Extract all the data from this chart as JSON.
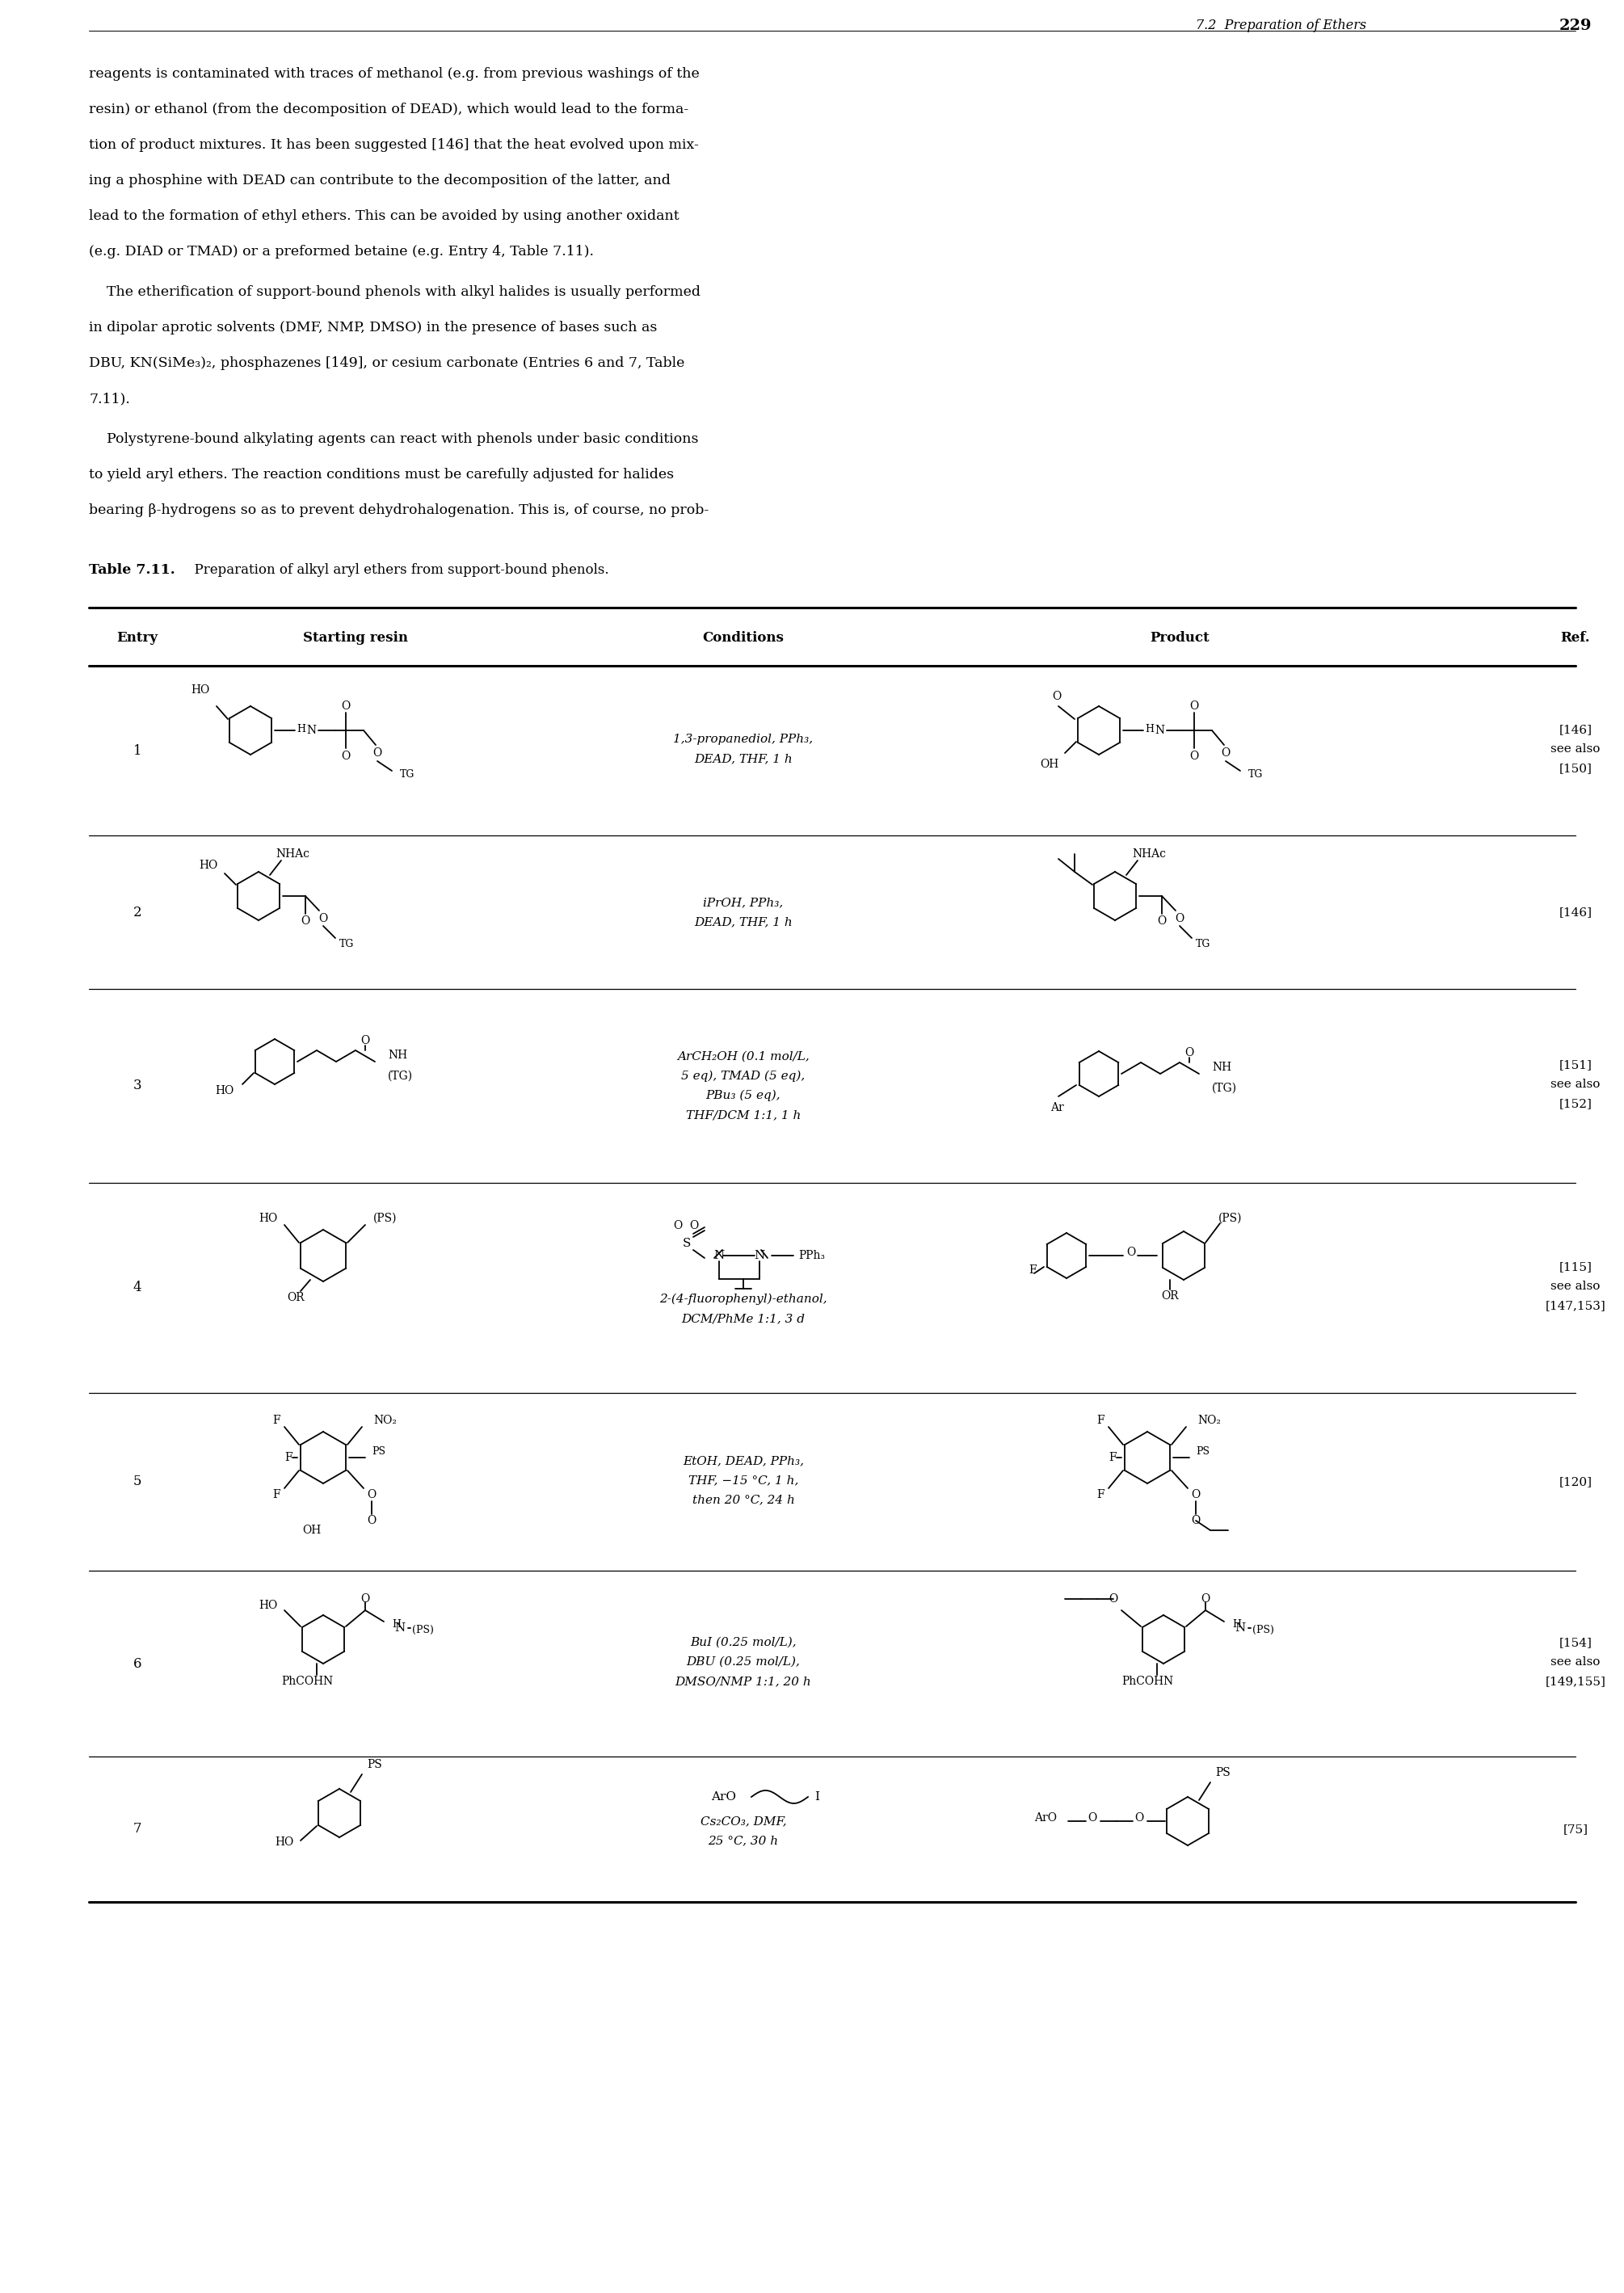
{
  "page_header_italic": "7.2  Preparation of Ethers",
  "page_number": "229",
  "para1_lines": [
    "reagents is contaminated with traces of methanol (e.g. from previous washings of the",
    "resin) or ethanol (from the decomposition of DEAD), which would lead to the forma-",
    "tion of product mixtures. It has been suggested [146] that the heat evolved upon mix-",
    "ing a phosphine with DEAD can contribute to the decomposition of the latter, and",
    "lead to the formation of ethyl ethers. This can be avoided by using another oxidant",
    "(e.g. DIAD or TMAD) or a preformed betaine (e.g. Entry 4, Table 7.11)."
  ],
  "para2_line1": "    The etherification of support-bound phenols with alkyl halides is usually performed",
  "para2_line2": "in dipolar aprotic solvents (DMF, NMP, DMSO) in the presence of bases such as",
  "para2_line3": "DBU, KN(SiMe₃)₂, phosphazenes [149], or cesium carbonate (Entries 6 and 7, Table",
  "para2_line4": "7.11).",
  "para3_lines": [
    "    Polystyrene-bound alkylating agents can react with phenols under basic conditions",
    "to yield aryl ethers. The reaction conditions must be carefully adjusted for halides",
    "bearing β-hydrogens so as to prevent dehydrohalogenation. This is, of course, no prob-"
  ],
  "table_title_bold": "Table 7.11.",
  "table_title_rest": "  Preparation of alkyl aryl ethers from support-bound phenols.",
  "row_refs": [
    "[146]\nsee also\n[150]",
    "[146]",
    "[151]\nsee also\n[152]",
    "[115]\nsee also\n[147,153]",
    "[120]",
    "[154]\nsee also\n[149,155]",
    "[75]"
  ],
  "row_conds": [
    "1,3-propanediol, PPh₃,\nDEAD, THF, 1 h",
    "iPrOH, PPh₃,\nDEAD, THF, 1 h",
    "ArCH₂OH (0.1 mol/L,\n5 eq), TMAD (5 eq),\nPBu₃ (5 eq),\nTHF/DCM 1:1, 1 h",
    "2-(4-fluorophenyl)-ethanol,\nDCM/PhMe 1:1, 3 d",
    "EtOH, DEAD, PPh₃,\nTHF, −15 °C, 1 h,\nthen 20 °C, 24 h",
    "BuI (0.25 mol/L),\nDBU (0.25 mol/L),\nDMSO/NMP 1:1, 20 h",
    "Cs₂CO₃, DMF,\n25 °C, 30 h"
  ]
}
